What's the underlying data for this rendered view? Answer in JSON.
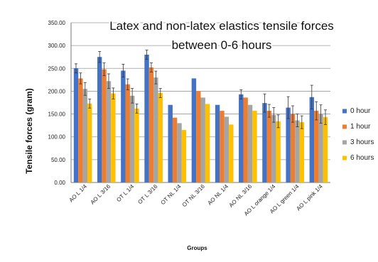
{
  "chart_data": {
    "type": "bar",
    "title_lines": [
      "Latex and non-latex elastics tensile forces",
      "between 0-6 hours"
    ],
    "xlabel": "Groups",
    "ylabel": "Tensile forces (gram)",
    "ylim": [
      0,
      350
    ],
    "yticks": [
      "0.00",
      "50.00",
      "100.00",
      "150.00",
      "200.00",
      "250.00",
      "300.00",
      "350.00"
    ],
    "grid": true,
    "legend_position": "right",
    "categories": [
      "AO L 1/4",
      "AO L 3/16",
      "OT L 1/4",
      "OT L 3/16",
      "OT NL 1/4",
      "OT NL 3/16",
      "AO NL 1/4",
      "AO NL 3/16",
      "AO L orange 1/4",
      "AO L green 1/4",
      "AO L pink 1/4"
    ],
    "series": [
      {
        "name": "0 hour",
        "color": "#4472C4",
        "values": [
          250,
          275,
          245,
          280,
          170,
          228,
          170,
          193,
          174,
          164,
          187
        ],
        "errors": [
          10,
          12,
          14,
          10,
          0,
          0,
          0,
          10,
          20,
          24,
          26
        ]
      },
      {
        "name": "1 hour",
        "color": "#ED7D31",
        "values": [
          228,
          248,
          215,
          252,
          142,
          200,
          157,
          186,
          157,
          150,
          157
        ],
        "errors": [
          12,
          14,
          12,
          10,
          0,
          0,
          0,
          0,
          14,
          18,
          20
        ]
      },
      {
        "name": "3 hours",
        "color": "#A5A5A5",
        "values": [
          205,
          222,
          190,
          230,
          130,
          186,
          144,
          170,
          148,
          136,
          150
        ],
        "errors": [
          14,
          16,
          16,
          14,
          0,
          0,
          0,
          0,
          16,
          14,
          20
        ]
      },
      {
        "name": "6 hours",
        "color": "#FFC000",
        "values": [
          173,
          195,
          162,
          196,
          115,
          172,
          127,
          157,
          134,
          132,
          143
        ],
        "errors": [
          10,
          12,
          10,
          10,
          0,
          0,
          0,
          0,
          14,
          14,
          16
        ]
      }
    ]
  }
}
